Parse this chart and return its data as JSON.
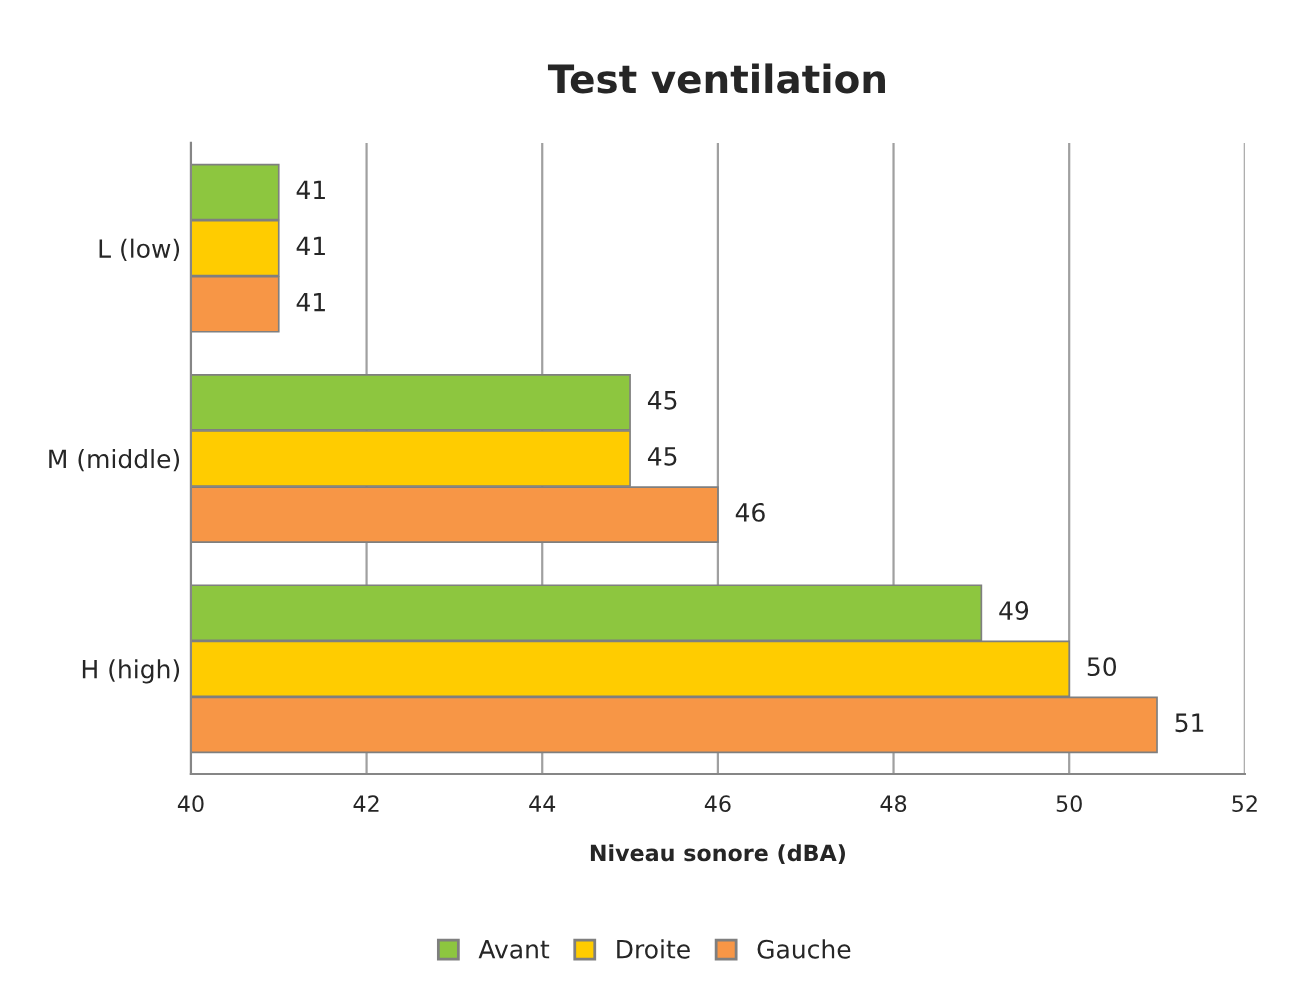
{
  "chart_data": {
    "type": "bar",
    "orientation": "horizontal",
    "title": "Test ventilation",
    "xlabel": "Niveau sonore (dBA)",
    "categories": [
      "L (low)",
      "M (middle)",
      "H (high)"
    ],
    "series": [
      {
        "name": "Avant",
        "color": "#8dc63f",
        "values": [
          41,
          45,
          49
        ]
      },
      {
        "name": "Droite",
        "color": "#ffcc00",
        "values": [
          41,
          45,
          50
        ]
      },
      {
        "name": "Gauche",
        "color": "#f79646",
        "values": [
          41,
          46,
          51
        ]
      }
    ],
    "xlim": [
      40,
      52
    ],
    "xticks": [
      40,
      42,
      44,
      46,
      48,
      50,
      52
    ],
    "grid": "x",
    "legend": "bottom",
    "data_labels": true
  }
}
